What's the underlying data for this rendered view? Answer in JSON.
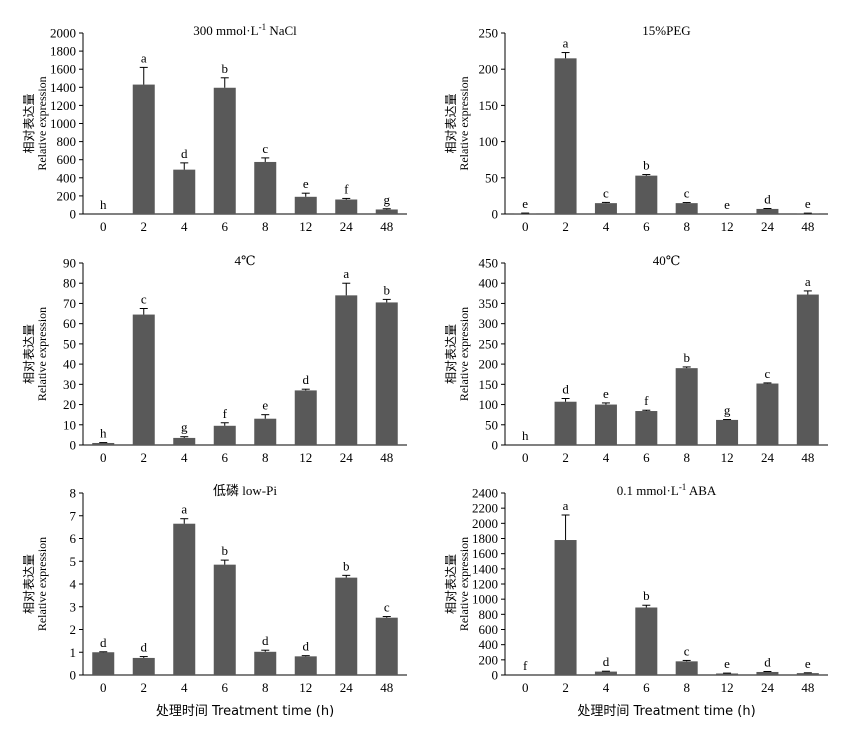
{
  "figure": {
    "ylabel_cn": "相对表达量",
    "ylabel_en": "Relative expression",
    "xlabel": "处理时间 Treatment time (h)"
  },
  "chart_data": [
    {
      "type": "bar",
      "title": "300 mmol·L⁻¹ NaCl",
      "title_main": "300 mmol·L",
      "title_sup": "-1",
      "title_tail": " NaCl",
      "categories": [
        "0",
        "2",
        "4",
        "6",
        "8",
        "12",
        "24",
        "48"
      ],
      "values": [
        0,
        1430,
        490,
        1395,
        575,
        190,
        160,
        50
      ],
      "errors": [
        0,
        190,
        75,
        110,
        45,
        40,
        12,
        8
      ],
      "letters": [
        "h",
        "a",
        "d",
        "b",
        "c",
        "e",
        "f",
        "g"
      ],
      "ylim": [
        0,
        2000
      ],
      "yticks": [
        0,
        200,
        400,
        600,
        800,
        1000,
        1200,
        1400,
        1600,
        1800,
        2000
      ],
      "ylabel": "相对表达量 Relative expression"
    },
    {
      "type": "bar",
      "title": "15%PEG",
      "title_main": "15%PEG",
      "title_sup": "",
      "title_tail": "",
      "categories": [
        "0",
        "2",
        "4",
        "6",
        "8",
        "12",
        "24",
        "48"
      ],
      "values": [
        1,
        215,
        15,
        53,
        15,
        0,
        7,
        1
      ],
      "errors": [
        0.3,
        8,
        1,
        1.5,
        0.8,
        0.1,
        0.6,
        0.2
      ],
      "letters": [
        "e",
        "a",
        "c",
        "b",
        "c",
        "e",
        "d",
        "e"
      ],
      "ylim": [
        0,
        250
      ],
      "yticks": [
        0,
        50,
        100,
        150,
        200,
        250
      ],
      "ylabel": "相对表达量 Relative expression"
    },
    {
      "type": "bar",
      "title": "4℃",
      "title_main": "4℃",
      "title_sup": "",
      "title_tail": "",
      "categories": [
        "0",
        "2",
        "4",
        "6",
        "8",
        "12",
        "24",
        "48"
      ],
      "values": [
        1,
        64.5,
        3.5,
        9.5,
        13,
        27,
        74,
        70.5
      ],
      "errors": [
        0.2,
        3,
        0.6,
        1.5,
        2,
        0.6,
        6,
        1.5
      ],
      "letters": [
        "h",
        "c",
        "g",
        "f",
        "e",
        "d",
        "a",
        "b"
      ],
      "ylim": [
        0,
        90
      ],
      "yticks": [
        0,
        10,
        20,
        30,
        40,
        50,
        60,
        70,
        80,
        90
      ],
      "ylabel": "相对表达量 Relative expression"
    },
    {
      "type": "bar",
      "title": "40℃",
      "title_main": "40℃",
      "title_sup": "",
      "title_tail": "",
      "categories": [
        "0",
        "2",
        "4",
        "6",
        "8",
        "12",
        "24",
        "48"
      ],
      "values": [
        0,
        107,
        100,
        84,
        190,
        62,
        152,
        372
      ],
      "errors": [
        0,
        8,
        4,
        2,
        3,
        1,
        1.5,
        9
      ],
      "letters": [
        "h",
        "d",
        "e",
        "f",
        "b",
        "g",
        "c",
        "a"
      ],
      "ylim": [
        0,
        450
      ],
      "yticks": [
        0,
        50,
        100,
        150,
        200,
        250,
        300,
        350,
        400,
        450
      ],
      "ylabel": "相对表达量 Relative expression"
    },
    {
      "type": "bar",
      "title": "低磷 low-Pi",
      "title_main": "低磷 low-Pi",
      "title_sup": "",
      "title_tail": "",
      "categories": [
        "0",
        "2",
        "4",
        "6",
        "8",
        "12",
        "24",
        "48"
      ],
      "values": [
        1,
        0.75,
        6.65,
        4.85,
        1.02,
        0.82,
        4.28,
        2.52
      ],
      "errors": [
        0.02,
        0.06,
        0.22,
        0.2,
        0.07,
        0.03,
        0.1,
        0.05
      ],
      "letters": [
        "d",
        "d",
        "a",
        "b",
        "d",
        "d",
        "b",
        "c"
      ],
      "ylim": [
        0,
        8
      ],
      "yticks": [
        0,
        1,
        2,
        3,
        4,
        5,
        6,
        7,
        8
      ],
      "xlabel": "处理时间 Treatment time (h)",
      "ylabel": "相对表达量 Relative expression"
    },
    {
      "type": "bar",
      "title": "0.1 mmol·L⁻¹ ABA",
      "title_main": "0.1 mmol·L",
      "title_sup": "-1",
      "title_tail": " ABA",
      "categories": [
        "0",
        "2",
        "4",
        "6",
        "8",
        "12",
        "24",
        "48"
      ],
      "values": [
        0,
        1780,
        45,
        890,
        180,
        20,
        40,
        25
      ],
      "errors": [
        0,
        330,
        5,
        30,
        12,
        5,
        6,
        4
      ],
      "letters": [
        "f",
        "a",
        "d",
        "b",
        "c",
        "e",
        "d",
        "e"
      ],
      "ylim": [
        0,
        2400
      ],
      "yticks": [
        0,
        200,
        400,
        600,
        800,
        1000,
        1200,
        1400,
        1600,
        1800,
        2000,
        2200,
        2400
      ],
      "xlabel": "处理时间 Treatment time (h)",
      "ylabel": "相对表达量 Relative expression"
    }
  ]
}
